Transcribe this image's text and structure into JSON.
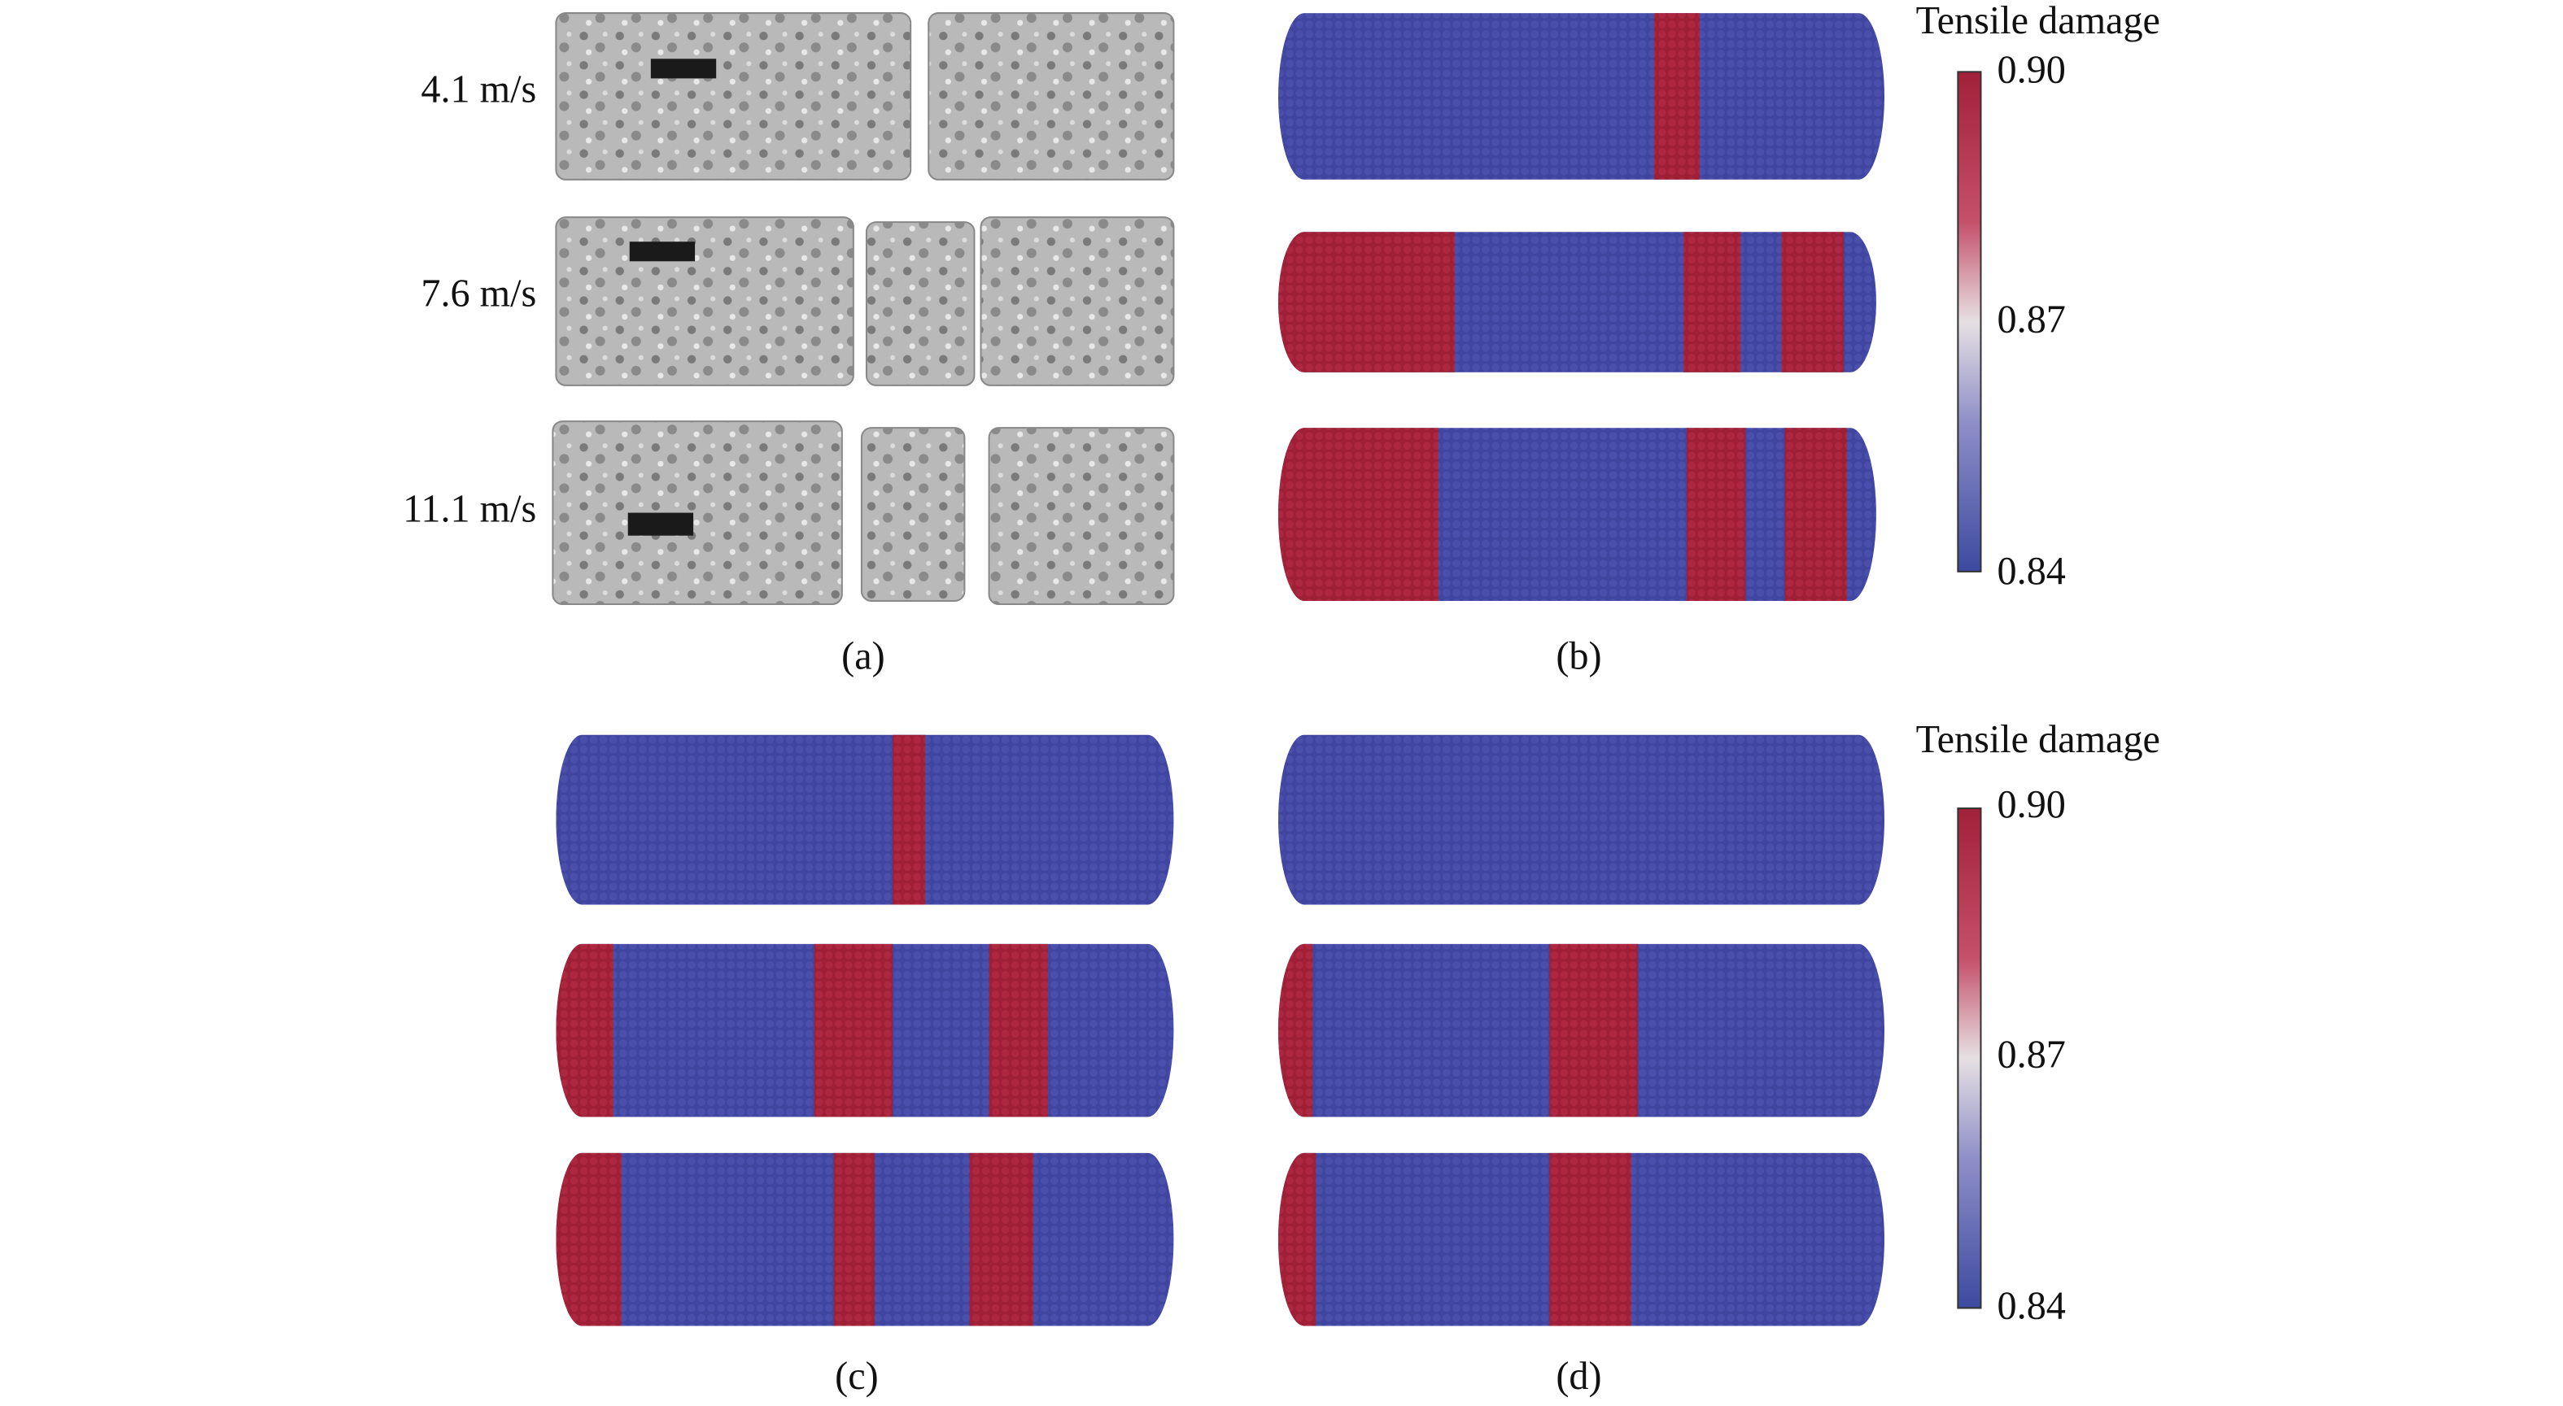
{
  "panels": [
    {
      "label": "(a)",
      "speeds": [
        "4.1 m/s",
        "7.6 m/s",
        "11.1 m/s"
      ]
    },
    {
      "label": "(b)"
    },
    {
      "label": "(c)"
    },
    {
      "label": "(d)"
    }
  ],
  "colorbars": [
    {
      "title": "Tensile damage",
      "ticks": [
        "0.90",
        "0.87",
        "0.84"
      ]
    },
    {
      "title": "Tensile damage",
      "ticks": [
        "0.90",
        "0.87",
        "0.84"
      ]
    }
  ]
}
